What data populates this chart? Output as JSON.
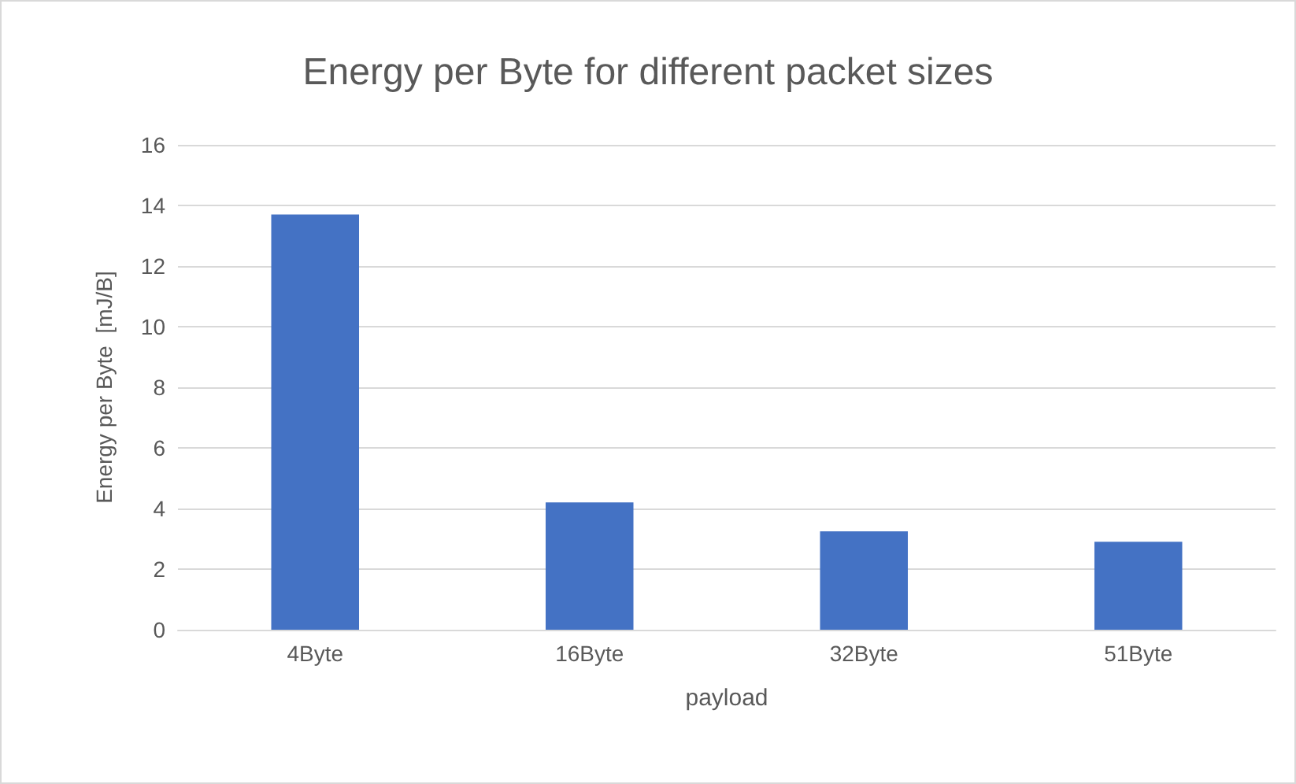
{
  "chart_data": {
    "type": "bar",
    "title": "Energy per Byte for different packet sizes",
    "xlabel": "payload",
    "ylabel": "Energy per Byte  [mJ/B]",
    "categories": [
      "4Byte",
      "16Byte",
      "32Byte",
      "51Byte"
    ],
    "values": [
      13.7,
      4.2,
      3.25,
      2.9
    ],
    "color": "#4472c4",
    "ylim": [
      0,
      16
    ],
    "yticks": [
      0,
      2,
      4,
      6,
      8,
      10,
      12,
      14,
      16
    ],
    "grid": "y"
  }
}
